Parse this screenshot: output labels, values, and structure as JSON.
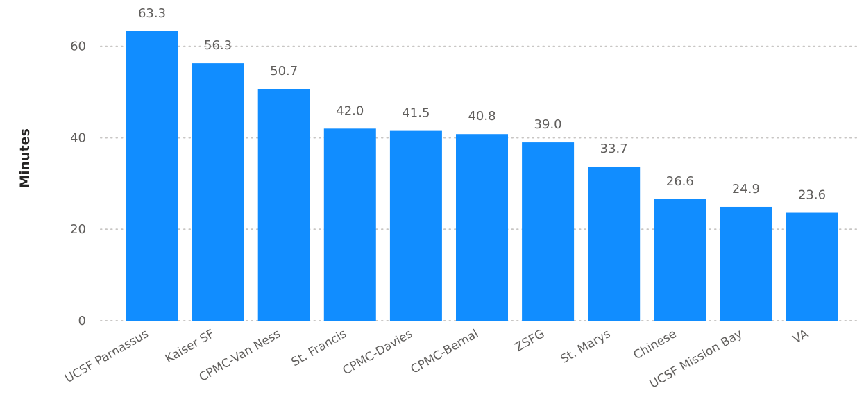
{
  "chart_data": {
    "type": "bar",
    "title": "",
    "xlabel": "",
    "ylabel": "Minutes",
    "ylim": [
      0,
      63.3
    ],
    "yticks": [
      0,
      20,
      40,
      60
    ],
    "grid": true,
    "color": "#118dff",
    "categories": [
      "UCSF Parnassus",
      "Kaiser SF",
      "CPMC-Van Ness",
      "St. Francis",
      "CPMC-Davies",
      "CPMC-Bernal",
      "ZSFG",
      "St. Marys",
      "Chinese",
      "UCSF Mission Bay",
      "VA"
    ],
    "values": [
      63.3,
      56.3,
      50.7,
      42.0,
      41.5,
      40.8,
      39.0,
      33.7,
      26.6,
      24.9,
      23.6
    ],
    "data_labels": [
      "63.3",
      "56.3",
      "50.7",
      "42.0",
      "41.5",
      "40.8",
      "39.0",
      "33.7",
      "26.6",
      "24.9",
      "23.6"
    ]
  }
}
